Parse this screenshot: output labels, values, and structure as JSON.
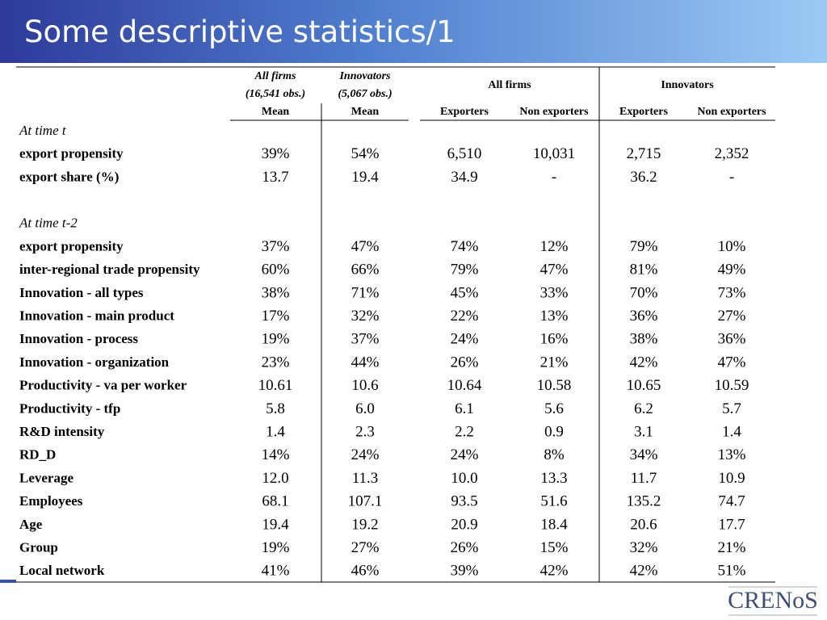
{
  "title": "Some descriptive statistics/1",
  "table": {
    "group_headers": [
      {
        "label": "All firms",
        "sub": "(16,541 obs.)"
      },
      {
        "label": "Innovators",
        "sub": "(5,067 obs.)"
      },
      {
        "label": "All firms"
      },
      {
        "label": "Innovators"
      }
    ],
    "columns": [
      "Mean",
      "Mean",
      "Exporters",
      "Non exporters",
      "Exporters",
      "Non exporters"
    ],
    "sections": [
      {
        "label": "At time t",
        "rows": [
          {
            "label": "export propensity",
            "cells": [
              "39%",
              "54%",
              "6,510",
              "10,031",
              "2,715",
              "2,352"
            ]
          },
          {
            "label": "export share (%)",
            "cells": [
              "13.7",
              "19.4",
              "34.9",
              "-",
              "36.2",
              "-"
            ]
          }
        ]
      },
      {
        "label": "At time t-2",
        "rows": [
          {
            "label": "export propensity",
            "cells": [
              "37%",
              "47%",
              "74%",
              "12%",
              "79%",
              "10%"
            ]
          },
          {
            "label": "inter-regional trade propensity",
            "cells": [
              "60%",
              "66%",
              "79%",
              "47%",
              "81%",
              "49%"
            ]
          },
          {
            "label": "Innovation - all types",
            "cells": [
              "38%",
              "71%",
              "45%",
              "33%",
              "70%",
              "73%"
            ]
          },
          {
            "label": "Innovation - main product",
            "cells": [
              "17%",
              "32%",
              "22%",
              "13%",
              "36%",
              "27%"
            ]
          },
          {
            "label": "Innovation - process",
            "cells": [
              "19%",
              "37%",
              "24%",
              "16%",
              "38%",
              "36%"
            ]
          },
          {
            "label": "Innovation - organization",
            "cells": [
              "23%",
              "44%",
              "26%",
              "21%",
              "42%",
              "47%"
            ]
          },
          {
            "label": "Productivity - va per worker",
            "cells": [
              "10.61",
              "10.6",
              "10.64",
              "10.58",
              "10.65",
              "10.59"
            ]
          },
          {
            "label": "Productivity - tfp",
            "cells": [
              "5.8",
              "6.0",
              "6.1",
              "5.6",
              "6.2",
              "5.7"
            ]
          },
          {
            "label": "R&D intensity",
            "cells": [
              "1.4",
              "2.3",
              "2.2",
              "0.9",
              "3.1",
              "1.4"
            ]
          },
          {
            "label": "RD_D",
            "cells": [
              "14%",
              "24%",
              "24%",
              "8%",
              "34%",
              "13%"
            ]
          },
          {
            "label": "Leverage",
            "cells": [
              "12.0",
              "11.3",
              "10.0",
              "13.3",
              "11.7",
              "10.9"
            ]
          },
          {
            "label": "Employees",
            "cells": [
              "68.1",
              "107.1",
              "93.5",
              "51.6",
              "135.2",
              "74.7"
            ]
          },
          {
            "label": "Age",
            "cells": [
              "19.4",
              "19.2",
              "20.9",
              "18.4",
              "20.6",
              "17.7"
            ]
          },
          {
            "label": "Group",
            "cells": [
              "19%",
              "27%",
              "26%",
              "15%",
              "32%",
              "21%"
            ]
          },
          {
            "label": "Local network",
            "cells": [
              "41%",
              "46%",
              "39%",
              "42%",
              "42%",
              "51%"
            ]
          }
        ]
      }
    ]
  },
  "logo": "CRENoS"
}
